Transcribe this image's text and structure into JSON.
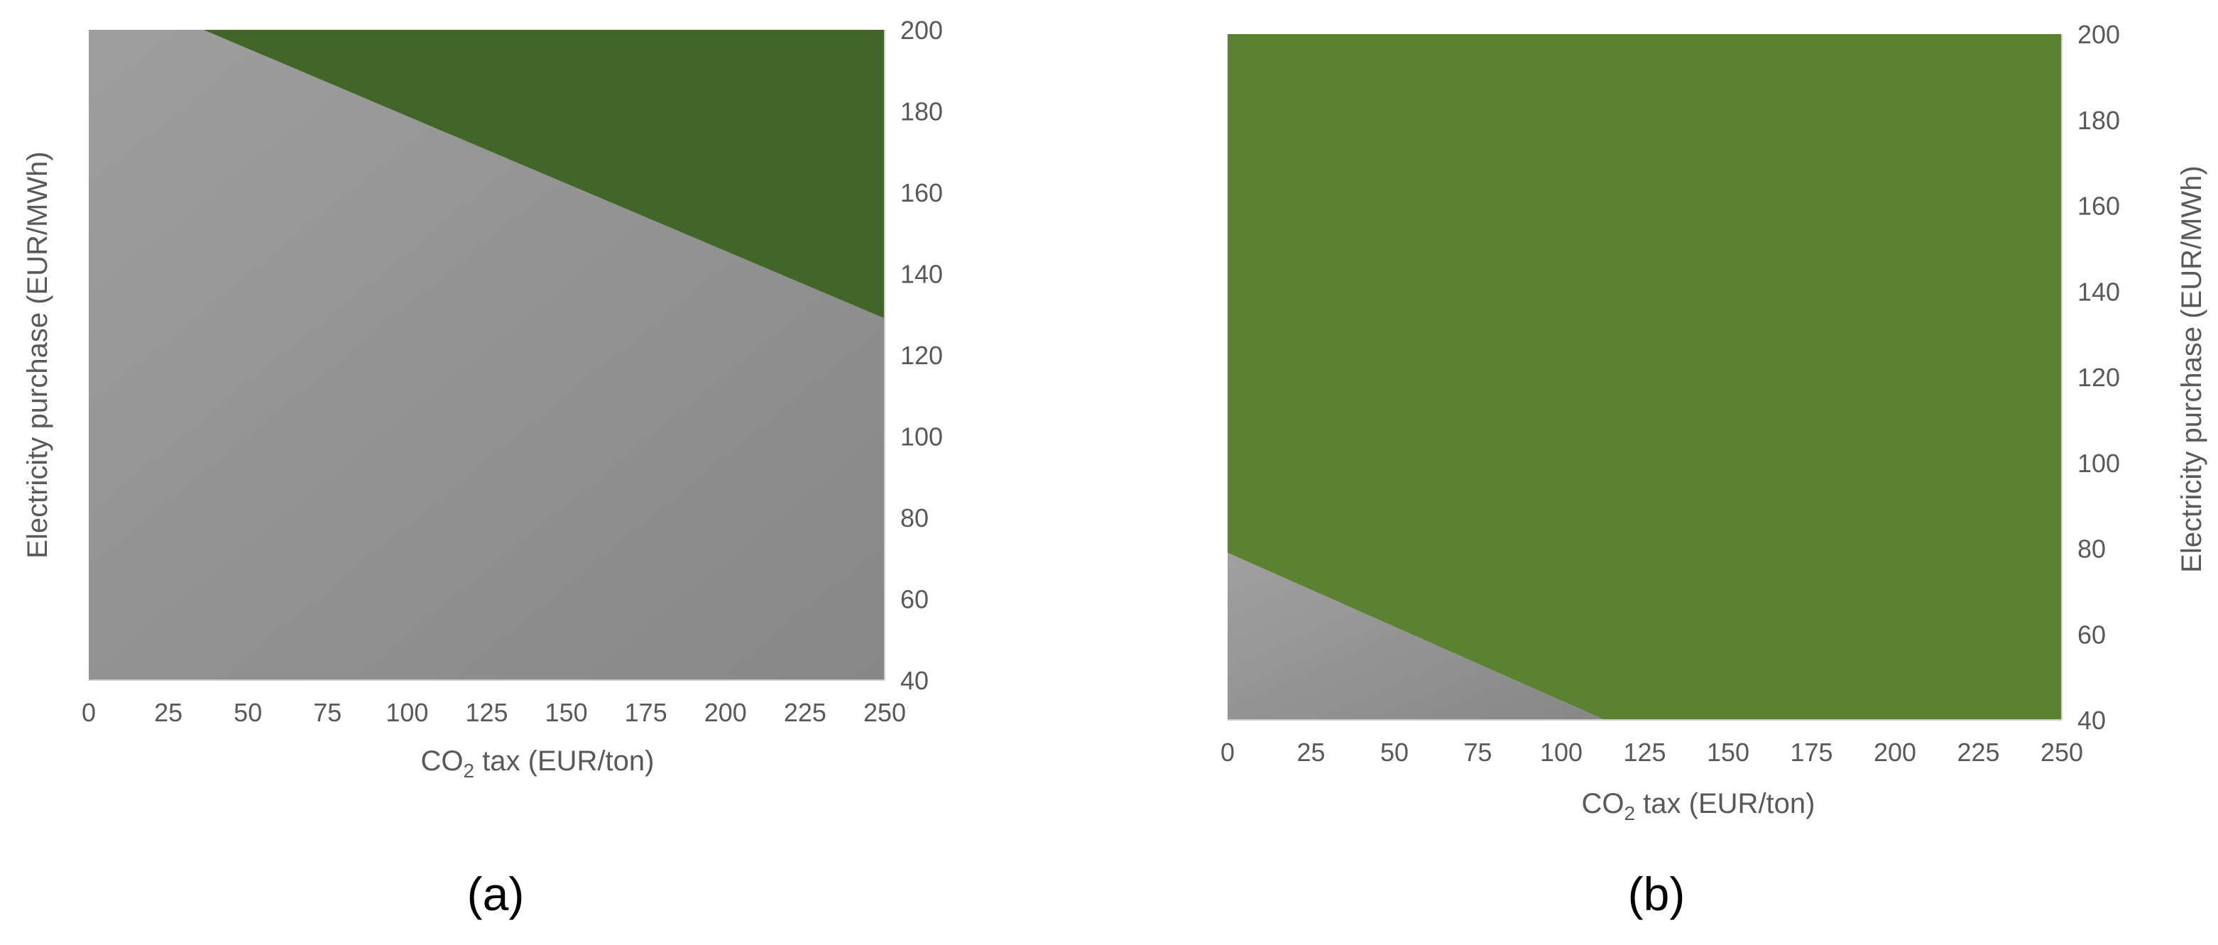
{
  "colors": {
    "green_a": "#426629",
    "green_b": "#5b8233",
    "gray_light": "#9a9a9a",
    "gray_dark": "#8a8a8a",
    "axis": "#c8c8c8",
    "tick_text": "#595959"
  },
  "chart_data": [
    {
      "panel_label": "(a)",
      "type": "contour",
      "xlabel": {
        "prefix": "CO",
        "sub": "2",
        "suffix": " tax (EUR/ton)"
      },
      "ylabel": "Electricity purchase (EUR/MWh)",
      "xlim": [
        0,
        250
      ],
      "ylim": [
        40,
        200
      ],
      "x_ticks": [
        0,
        25,
        50,
        75,
        100,
        125,
        150,
        175,
        200,
        225,
        250
      ],
      "y_ticks": [
        200,
        180,
        160,
        140,
        120,
        100,
        80,
        60,
        40
      ],
      "y_axis_side": "right",
      "grid": false,
      "regions": [
        {
          "fill": "gray",
          "boundary": [
            [
              0,
              40
            ],
            [
              250,
              40
            ],
            [
              250,
              129
            ],
            [
              36,
              200
            ],
            [
              0,
              200
            ]
          ]
        },
        {
          "fill": "green",
          "boundary": [
            [
              36,
              200
            ],
            [
              250,
              200
            ],
            [
              250,
              129
            ]
          ]
        }
      ]
    },
    {
      "panel_label": "(b)",
      "type": "contour",
      "xlabel": {
        "prefix": "CO",
        "sub": "2",
        "suffix": " tax (EUR/ton)"
      },
      "ylabel": "Electricity purchase (EUR/MWh)",
      "xlim": [
        0,
        250
      ],
      "ylim": [
        40,
        200
      ],
      "x_ticks": [
        0,
        25,
        50,
        75,
        100,
        125,
        150,
        175,
        200,
        225,
        250
      ],
      "y_ticks": [
        200,
        180,
        160,
        140,
        120,
        100,
        80,
        60,
        40
      ],
      "y_axis_side": "right",
      "grid": false,
      "regions": [
        {
          "fill": "green",
          "boundary": [
            [
              0,
              79
            ],
            [
              0,
              200
            ],
            [
              250,
              200
            ],
            [
              250,
              40
            ],
            [
              113,
              40
            ]
          ]
        },
        {
          "fill": "gray",
          "boundary": [
            [
              0,
              40
            ],
            [
              113,
              40
            ],
            [
              0,
              79
            ]
          ]
        }
      ]
    }
  ]
}
